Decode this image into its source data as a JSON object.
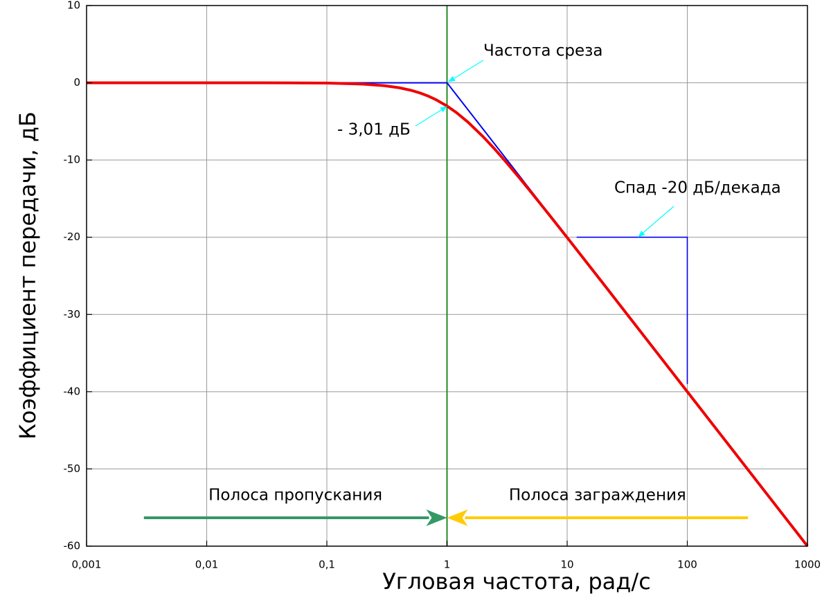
{
  "chart_data": {
    "type": "line",
    "x_label": "Угловая частота, рад/с",
    "y_label": "Коэффициент передачи, дБ",
    "x_log": true,
    "grid": true,
    "xlim": [
      0.001,
      1000
    ],
    "ylim": [
      -60,
      10
    ],
    "xticks": [
      {
        "value": 0.001,
        "label": "0,001"
      },
      {
        "value": 0.01,
        "label": "0,01"
      },
      {
        "value": 0.1,
        "label": "0,1"
      },
      1,
      10,
      100,
      1000
    ],
    "yticks": [
      10,
      0,
      -10,
      -20,
      -30,
      -40,
      -50,
      -60
    ],
    "x": [
      0.001,
      0.01,
      0.05,
      0.1,
      0.2,
      0.3,
      0.4,
      0.5,
      0.6,
      0.7,
      0.8,
      1,
      1.2,
      1.5,
      2,
      2.5,
      3,
      4,
      5,
      7,
      10,
      20,
      100,
      1000
    ],
    "series": [
      {
        "color": "#0000ee",
        "width": 2,
        "values": [
          null,
          null,
          null,
          0,
          0,
          0,
          0,
          0,
          0,
          0,
          0,
          0,
          -1.58,
          -3.52,
          -6.02,
          -7.96,
          -9.54,
          -12.04,
          -13.98,
          -16.9,
          -20,
          null,
          null,
          null
        ]
      },
      {
        "color": "#ee0000",
        "width": 4,
        "values": [
          0,
          0,
          -0.011,
          -0.043,
          -0.17,
          -0.374,
          -0.645,
          -0.969,
          -1.335,
          -1.734,
          -2.148,
          -3.01,
          -3.87,
          -5.12,
          -6.99,
          -8.6,
          -10,
          -12.3,
          -14.15,
          -16.99,
          -20.04,
          -26.02,
          -40,
          -60
        ]
      }
    ],
    "cutoff": {
      "value": 1,
      "color": "#228b22"
    },
    "slope_marker": {
      "color": "#0000ee",
      "x": [
        12,
        100,
        100
      ],
      "y": [
        -20,
        -20,
        -39
      ]
    },
    "bands": [
      {
        "label": "Полоса пропускания",
        "from": 0.003,
        "to": 1,
        "color": "#339966"
      },
      {
        "label": "Полоса заграждения",
        "from": 320,
        "to": 1,
        "color": "#ffcc00"
      }
    ],
    "annotations": [
      {
        "text": "Частота среза"
      },
      {
        "text": "- 3,01 дБ"
      },
      {
        "text": "Спад -20 дБ/декада"
      }
    ]
  }
}
